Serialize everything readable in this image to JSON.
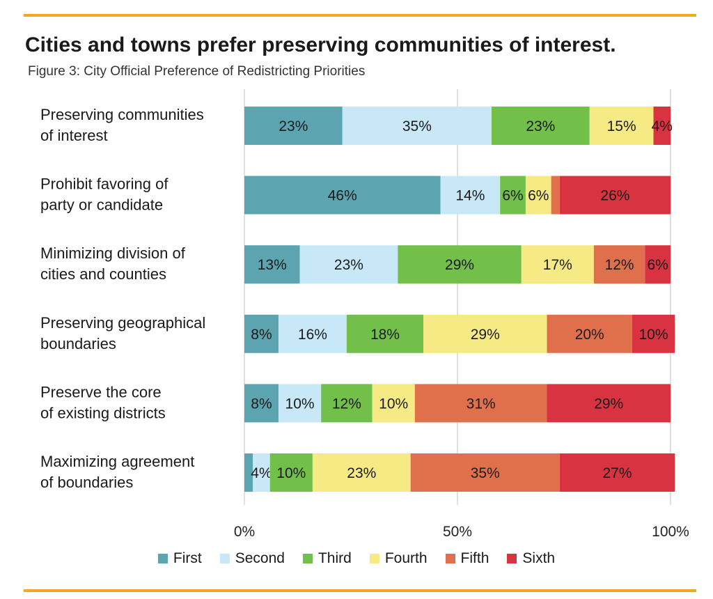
{
  "title": "Cities and towns prefer preserving communities of interest.",
  "subtitle": "Figure 3: City Official Preference of Redistricting Priorities",
  "colors": {
    "First": "#5ba4b0",
    "Second": "#c8e8f8",
    "Third": "#72bf4a",
    "Fourth": "#f5ea83",
    "Fifth": "#e0704c",
    "Sixth": "#d93240",
    "accent_rule": "#f5a623"
  },
  "chart_data": {
    "type": "bar",
    "orientation": "horizontal",
    "stacked": true,
    "title": "Cities and towns prefer preserving communities of interest.",
    "subtitle": "Figure 3: City Official Preference of Redistricting Priorities",
    "categories": [
      [
        "Preserving communities",
        "of interest"
      ],
      [
        "Prohibit favoring of",
        "party or candidate"
      ],
      [
        "Minimizing division of",
        "cities and counties"
      ],
      [
        "Preserving geographical",
        "boundaries"
      ],
      [
        "Preserve the core",
        "of existing districts"
      ],
      [
        "Maximizing agreement",
        "of boundaries"
      ]
    ],
    "series": [
      {
        "name": "First",
        "values": [
          23,
          46,
          13,
          8,
          8,
          2
        ]
      },
      {
        "name": "Second",
        "values": [
          35,
          14,
          23,
          16,
          10,
          4
        ]
      },
      {
        "name": "Third",
        "values": [
          23,
          6,
          29,
          18,
          12,
          10
        ]
      },
      {
        "name": "Fourth",
        "values": [
          15,
          6,
          17,
          29,
          10,
          23
        ]
      },
      {
        "name": "Fifth",
        "values": [
          0,
          2,
          12,
          20,
          31,
          35
        ]
      },
      {
        "name": "Sixth",
        "values": [
          4,
          26,
          6,
          10,
          29,
          27
        ]
      }
    ],
    "data_labels": [
      [
        "23%",
        "35%",
        "23%",
        "15%",
        "",
        "4%"
      ],
      [
        "46%",
        "14%",
        "6%",
        "6%",
        "",
        "26%"
      ],
      [
        "13%",
        "23%",
        "29%",
        "17%",
        "12%",
        "6%"
      ],
      [
        "8%",
        "16%",
        "18%",
        "29%",
        "20%",
        "10%"
      ],
      [
        "8%",
        "10%",
        "12%",
        "10%",
        "31%",
        "29%"
      ],
      [
        "",
        "4%",
        "10%",
        "23%",
        "35%",
        "27%"
      ]
    ],
    "xlim": [
      0,
      100
    ],
    "xticks": [
      0,
      50,
      100
    ],
    "xtick_labels": [
      "0%",
      "50%",
      "100%"
    ],
    "grid": true,
    "legend_position": "bottom"
  }
}
